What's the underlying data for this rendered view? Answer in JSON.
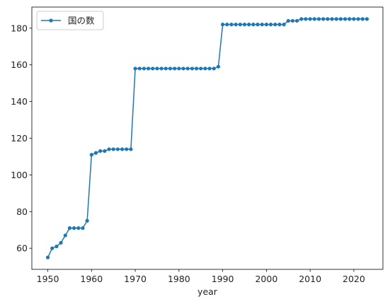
{
  "chart_data": {
    "type": "line",
    "title": "",
    "xlabel": "year",
    "ylabel": "",
    "xlim": [
      1946.35,
      2026.65
    ],
    "ylim": [
      48.5,
      191.5
    ],
    "xticks": [
      1950,
      1960,
      1970,
      1980,
      1990,
      2000,
      2010,
      2020
    ],
    "yticks": [
      60,
      80,
      100,
      120,
      140,
      160,
      180
    ],
    "grid": false,
    "legend": "top-left",
    "series": [
      {
        "name": "国の数",
        "color": "#1f77b4",
        "marker": "circle",
        "x": [
          1950,
          1951,
          1952,
          1953,
          1954,
          1955,
          1956,
          1957,
          1958,
          1959,
          1960,
          1961,
          1962,
          1963,
          1964,
          1965,
          1966,
          1967,
          1968,
          1969,
          1970,
          1971,
          1972,
          1973,
          1974,
          1975,
          1976,
          1977,
          1978,
          1979,
          1980,
          1981,
          1982,
          1983,
          1984,
          1985,
          1986,
          1987,
          1988,
          1989,
          1990,
          1991,
          1992,
          1993,
          1994,
          1995,
          1996,
          1997,
          1998,
          1999,
          2000,
          2001,
          2002,
          2003,
          2004,
          2005,
          2006,
          2007,
          2008,
          2009,
          2010,
          2011,
          2012,
          2013,
          2014,
          2015,
          2016,
          2017,
          2018,
          2019,
          2020,
          2021,
          2022,
          2023
        ],
        "y": [
          55,
          60,
          61,
          63,
          67,
          71,
          71,
          71,
          71,
          75,
          111,
          112,
          113,
          113,
          114,
          114,
          114,
          114,
          114,
          114,
          158,
          158,
          158,
          158,
          158,
          158,
          158,
          158,
          158,
          158,
          158,
          158,
          158,
          158,
          158,
          158,
          158,
          158,
          158,
          159,
          182,
          182,
          182,
          182,
          182,
          182,
          182,
          182,
          182,
          182,
          182,
          182,
          182,
          182,
          182,
          184,
          184,
          184,
          185,
          185,
          185,
          185,
          185,
          185,
          185,
          185,
          185,
          185,
          185,
          185,
          185,
          185,
          185,
          185
        ]
      }
    ]
  }
}
